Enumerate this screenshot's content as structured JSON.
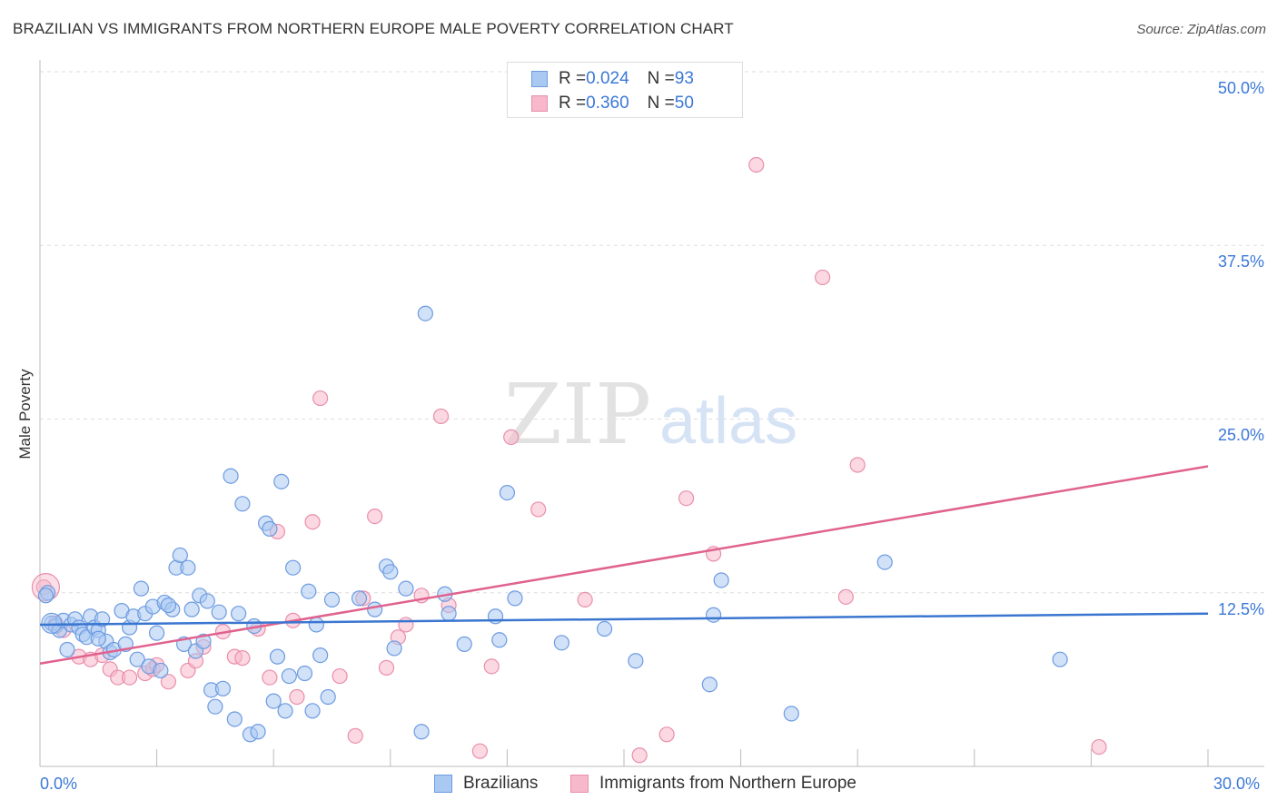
{
  "header": {
    "title": "BRAZILIAN VS IMMIGRANTS FROM NORTHERN EUROPE MALE POVERTY CORRELATION CHART",
    "source": "Source: ZipAtlas.com"
  },
  "watermark": {
    "zip": "ZIP",
    "atlas": "atlas"
  },
  "legend": {
    "rows": [
      {
        "r_label": "R = ",
        "r_value": "0.024",
        "n_label": "N = ",
        "n_value": "93",
        "color": "#a9c8f2"
      },
      {
        "r_label": "R = ",
        "r_value": "0.360",
        "n_label": "N = ",
        "n_value": "50",
        "color": "#f7b8cb"
      }
    ]
  },
  "bottom_legend": {
    "series1": "Brazilians",
    "series2": "Immigrants from Northern Europe"
  },
  "colors": {
    "blue_fill": "#a9c8f2",
    "blue_stroke": "#6d9be0",
    "blue_line": "#3a76d0",
    "pink_fill": "#f7b8cb",
    "pink_stroke": "#e98fab",
    "pink_line": "#e0628e",
    "tick_text": "#3b78d8",
    "grid": "#dddddd"
  },
  "chart_data": {
    "type": "scatter",
    "title": "BRAZILIAN VS IMMIGRANTS FROM NORTHERN EUROPE MALE POVERTY CORRELATION CHART",
    "xlabel": "",
    "ylabel": "Male Poverty",
    "xlim": [
      0,
      30
    ],
    "ylim": [
      0,
      50
    ],
    "x_tick_labels": [
      "0.0%",
      "30.0%"
    ],
    "y_ticks": [
      12.5,
      25.0,
      37.5,
      50.0
    ],
    "y_tick_labels": [
      "12.5%",
      "25.0%",
      "37.5%",
      "50.0%"
    ],
    "grid": "horizontal dashed",
    "legend_position": "top-center",
    "series": [
      {
        "name": "Brazilians",
        "R": 0.024,
        "N": 93,
        "trend": {
          "x": [
            0,
            30
          ],
          "y": [
            10.2,
            11.0
          ]
        },
        "points": [
          [
            0.2,
            12.5
          ],
          [
            0.3,
            10.3
          ],
          [
            0.4,
            10.1
          ],
          [
            0.5,
            9.8
          ],
          [
            0.6,
            10.5
          ],
          [
            0.7,
            8.4
          ],
          [
            0.8,
            10.2
          ],
          [
            0.9,
            10.6
          ],
          [
            1.0,
            10.0
          ],
          [
            1.1,
            9.5
          ],
          [
            1.2,
            9.3
          ],
          [
            1.3,
            10.8
          ],
          [
            1.4,
            10.0
          ],
          [
            1.5,
            9.8
          ],
          [
            1.6,
            10.6
          ],
          [
            1.7,
            9.0
          ],
          [
            1.8,
            8.2
          ],
          [
            1.9,
            8.4
          ],
          [
            2.1,
            11.2
          ],
          [
            2.2,
            8.8
          ],
          [
            2.3,
            10.0
          ],
          [
            2.4,
            10.8
          ],
          [
            2.5,
            7.7
          ],
          [
            2.6,
            12.8
          ],
          [
            2.7,
            11.0
          ],
          [
            2.8,
            7.2
          ],
          [
            2.9,
            11.5
          ],
          [
            3.0,
            9.6
          ],
          [
            3.1,
            6.9
          ],
          [
            3.2,
            11.8
          ],
          [
            3.4,
            11.3
          ],
          [
            3.5,
            14.3
          ],
          [
            3.6,
            15.2
          ],
          [
            3.7,
            8.8
          ],
          [
            3.8,
            14.3
          ],
          [
            3.9,
            11.3
          ],
          [
            4.0,
            8.3
          ],
          [
            4.1,
            12.3
          ],
          [
            4.2,
            9.0
          ],
          [
            4.3,
            11.9
          ],
          [
            4.4,
            5.5
          ],
          [
            4.5,
            4.3
          ],
          [
            4.6,
            11.1
          ],
          [
            4.7,
            5.6
          ],
          [
            4.9,
            20.9
          ],
          [
            5.0,
            3.4
          ],
          [
            5.1,
            11.0
          ],
          [
            5.2,
            18.9
          ],
          [
            5.4,
            2.3
          ],
          [
            5.5,
            10.1
          ],
          [
            5.6,
            2.5
          ],
          [
            5.8,
            17.5
          ],
          [
            5.9,
            17.1
          ],
          [
            6.0,
            4.7
          ],
          [
            6.1,
            7.9
          ],
          [
            6.2,
            20.5
          ],
          [
            6.3,
            4.0
          ],
          [
            6.4,
            6.5
          ],
          [
            6.5,
            14.3
          ],
          [
            6.8,
            6.7
          ],
          [
            6.9,
            12.6
          ],
          [
            7.0,
            4.0
          ],
          [
            7.1,
            10.2
          ],
          [
            7.2,
            8.0
          ],
          [
            7.4,
            5.0
          ],
          [
            7.5,
            12.0
          ],
          [
            8.2,
            12.1
          ],
          [
            8.6,
            11.3
          ],
          [
            8.9,
            14.4
          ],
          [
            9.0,
            14.0
          ],
          [
            9.1,
            8.5
          ],
          [
            9.4,
            12.8
          ],
          [
            9.8,
            2.5
          ],
          [
            9.9,
            32.6
          ],
          [
            10.4,
            12.4
          ],
          [
            10.5,
            11.0
          ],
          [
            10.9,
            8.8
          ],
          [
            11.7,
            10.8
          ],
          [
            11.8,
            9.1
          ],
          [
            12.0,
            19.7
          ],
          [
            12.2,
            12.1
          ],
          [
            13.4,
            8.9
          ],
          [
            14.5,
            9.9
          ],
          [
            15.3,
            7.6
          ],
          [
            17.2,
            5.9
          ],
          [
            17.3,
            10.9
          ],
          [
            17.5,
            13.4
          ],
          [
            19.3,
            3.8
          ],
          [
            21.7,
            14.7
          ],
          [
            26.2,
            7.7
          ],
          [
            0.15,
            12.3
          ],
          [
            1.5,
            9.2
          ],
          [
            3.3,
            11.6
          ]
        ]
      },
      {
        "name": "Immigrants from Northern Europe",
        "R": 0.36,
        "N": 50,
        "trend": {
          "x": [
            0,
            30
          ],
          "y": [
            7.4,
            21.6
          ]
        },
        "points": [
          [
            0.1,
            12.9
          ],
          [
            0.4,
            10.3
          ],
          [
            0.6,
            9.8
          ],
          [
            1.0,
            7.9
          ],
          [
            1.3,
            7.7
          ],
          [
            1.6,
            8.0
          ],
          [
            1.8,
            7.0
          ],
          [
            2.0,
            6.4
          ],
          [
            2.3,
            6.4
          ],
          [
            2.7,
            6.7
          ],
          [
            2.9,
            7.0
          ],
          [
            3.0,
            7.3
          ],
          [
            3.3,
            6.1
          ],
          [
            3.8,
            6.9
          ],
          [
            4.0,
            7.6
          ],
          [
            4.2,
            8.6
          ],
          [
            4.7,
            9.7
          ],
          [
            5.0,
            7.9
          ],
          [
            5.2,
            7.8
          ],
          [
            5.6,
            9.9
          ],
          [
            5.9,
            6.4
          ],
          [
            6.1,
            16.9
          ],
          [
            6.5,
            10.5
          ],
          [
            6.6,
            5.0
          ],
          [
            7.0,
            17.6
          ],
          [
            7.2,
            26.5
          ],
          [
            7.7,
            6.5
          ],
          [
            8.1,
            2.2
          ],
          [
            8.3,
            12.1
          ],
          [
            8.6,
            18.0
          ],
          [
            8.9,
            7.1
          ],
          [
            9.2,
            9.3
          ],
          [
            9.4,
            10.2
          ],
          [
            9.8,
            12.3
          ],
          [
            10.3,
            25.2
          ],
          [
            10.5,
            11.6
          ],
          [
            11.3,
            1.1
          ],
          [
            11.6,
            7.2
          ],
          [
            12.1,
            23.7
          ],
          [
            12.8,
            18.5
          ],
          [
            14.0,
            12.0
          ],
          [
            15.4,
            0.8
          ],
          [
            16.1,
            2.3
          ],
          [
            16.6,
            19.3
          ],
          [
            17.3,
            15.3
          ],
          [
            18.4,
            43.3
          ],
          [
            20.1,
            35.2
          ],
          [
            20.7,
            12.2
          ],
          [
            21.0,
            21.7
          ],
          [
            27.2,
            1.4
          ]
        ]
      }
    ]
  }
}
